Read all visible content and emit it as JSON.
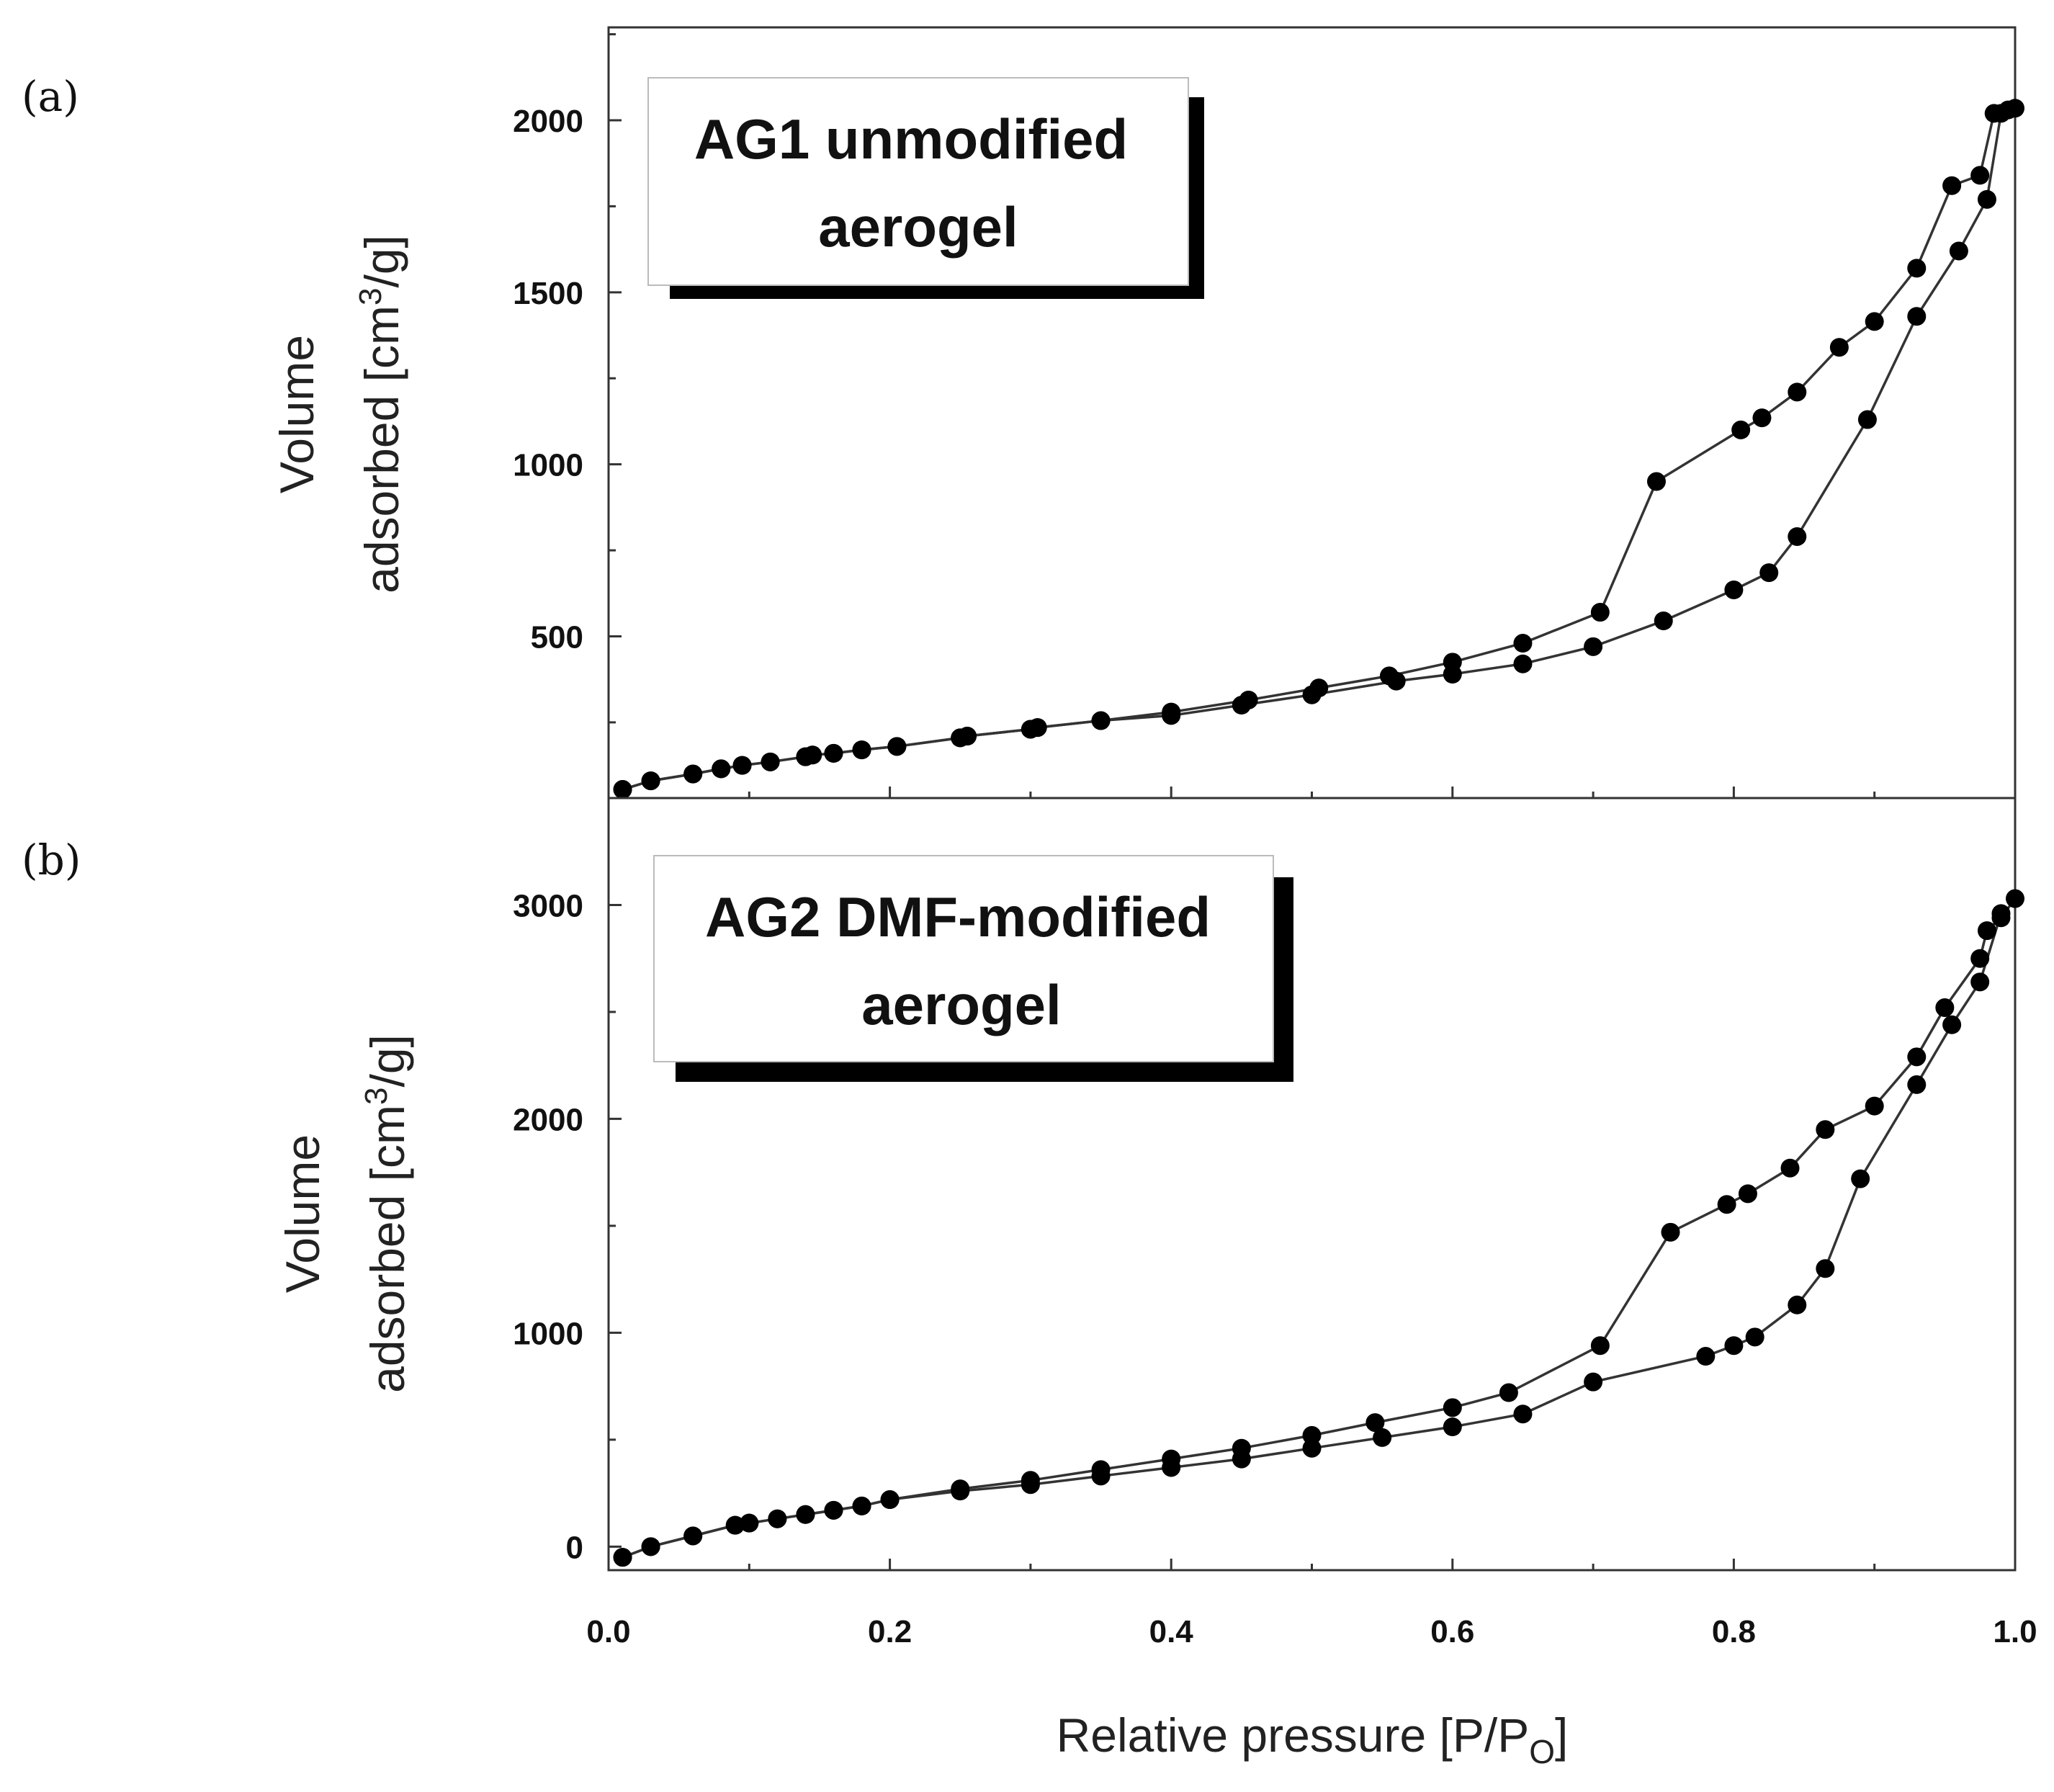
{
  "chart_data": [
    {
      "type": "line",
      "panel_label": "(a)",
      "annotation": [
        "AG1 unmodified",
        "aerogel"
      ],
      "ylabel": [
        "Volume",
        "adsorbed [cm",
        "3",
        "/g]"
      ],
      "xlabel": "",
      "xlim": [
        0.0,
        1.0
      ],
      "ylim": [
        30,
        2270
      ],
      "yticks": [
        500,
        1000,
        1500,
        2000
      ],
      "ytick_labels": [
        "500",
        "1000",
        "1500",
        "2000"
      ],
      "series": [
        {
          "name": "adsorption",
          "x": [
            0.01,
            0.03,
            0.06,
            0.08,
            0.095,
            0.115,
            0.14,
            0.145,
            0.16,
            0.18,
            0.205,
            0.25,
            0.255,
            0.3,
            0.305,
            0.35,
            0.4,
            0.45,
            0.5,
            0.56,
            0.6,
            0.65,
            0.7,
            0.75,
            0.8,
            0.825,
            0.845,
            0.895,
            0.93,
            0.96,
            0.98,
            0.99
          ],
          "y": [
            55,
            80,
            100,
            115,
            125,
            135,
            150,
            155,
            160,
            170,
            180,
            205,
            210,
            230,
            235,
            255,
            270,
            300,
            330,
            370,
            390,
            420,
            470,
            545,
            635,
            685,
            790,
            1130,
            1430,
            1620,
            1770,
            2020
          ]
        },
        {
          "name": "desorption",
          "x": [
            0.01,
            0.03,
            0.06,
            0.08,
            0.095,
            0.115,
            0.14,
            0.145,
            0.16,
            0.18,
            0.205,
            0.25,
            0.255,
            0.3,
            0.305,
            0.35,
            0.4,
            0.455,
            0.505,
            0.555,
            0.6,
            0.65,
            0.705,
            0.745,
            0.805,
            0.82,
            0.845,
            0.875,
            0.9,
            0.93,
            0.955,
            0.975,
            0.985,
            0.995,
            1.0
          ],
          "y": [
            55,
            80,
            100,
            115,
            125,
            135,
            150,
            155,
            160,
            170,
            180,
            205,
            210,
            230,
            235,
            255,
            280,
            315,
            350,
            385,
            425,
            480,
            570,
            950,
            1100,
            1135,
            1210,
            1340,
            1415,
            1570,
            1810,
            1840,
            2020,
            2030,
            2035
          ]
        }
      ]
    },
    {
      "type": "line",
      "panel_label": "(b)",
      "annotation": [
        "AG2 DMF-modified",
        "aerogel"
      ],
      "ylabel": [
        "Volume",
        "adsorbed [cm",
        "3",
        "/g]"
      ],
      "xlabel": "Relative pressure [P/P",
      "xlabel_sub": "O",
      "xlabel_end": "]",
      "xlim": [
        0.0,
        1.0
      ],
      "ylim": [
        -110,
        3500
      ],
      "yticks": [
        0,
        1000,
        2000,
        3000
      ],
      "ytick_labels": [
        "0",
        "1000",
        "2000",
        "3000"
      ],
      "xticks": [
        0.0,
        0.2,
        0.4,
        0.6,
        0.8,
        1.0
      ],
      "xtick_labels": [
        "0.0",
        "0.2",
        "0.4",
        "0.6",
        "0.8",
        "1.0"
      ],
      "series": [
        {
          "name": "adsorption",
          "x": [
            0.01,
            0.03,
            0.06,
            0.09,
            0.1,
            0.12,
            0.14,
            0.16,
            0.18,
            0.2,
            0.25,
            0.3,
            0.35,
            0.4,
            0.45,
            0.5,
            0.55,
            0.6,
            0.65,
            0.7,
            0.78,
            0.8,
            0.815,
            0.845,
            0.865,
            0.89,
            0.93,
            0.955,
            0.975,
            0.99
          ],
          "y": [
            -50,
            0,
            50,
            100,
            110,
            130,
            150,
            170,
            190,
            220,
            260,
            290,
            330,
            370,
            410,
            460,
            510,
            560,
            620,
            770,
            890,
            940,
            980,
            1130,
            1300,
            1720,
            2160,
            2440,
            2640,
            2960
          ]
        },
        {
          "name": "desorption",
          "x": [
            0.01,
            0.03,
            0.06,
            0.09,
            0.1,
            0.12,
            0.14,
            0.16,
            0.18,
            0.2,
            0.25,
            0.3,
            0.35,
            0.4,
            0.45,
            0.5,
            0.545,
            0.6,
            0.64,
            0.705,
            0.755,
            0.795,
            0.81,
            0.84,
            0.865,
            0.9,
            0.93,
            0.95,
            0.975,
            0.98,
            0.99,
            1.0
          ],
          "y": [
            -50,
            0,
            50,
            100,
            110,
            130,
            150,
            170,
            190,
            220,
            270,
            310,
            360,
            410,
            460,
            520,
            580,
            650,
            720,
            940,
            1470,
            1600,
            1650,
            1770,
            1950,
            2060,
            2290,
            2520,
            2750,
            2880,
            2940,
            3030
          ]
        }
      ]
    }
  ]
}
